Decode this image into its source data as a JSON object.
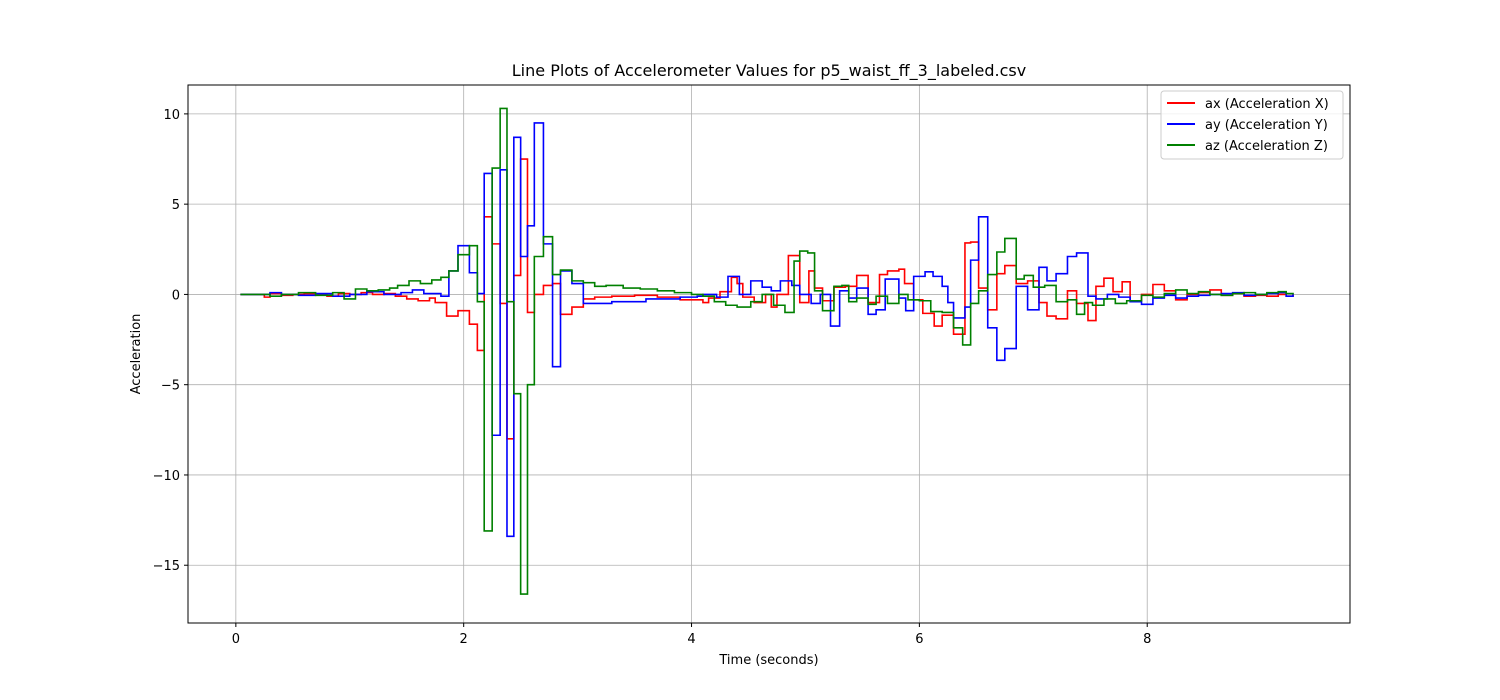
{
  "chart_data": {
    "type": "line",
    "title": "Line Plots of Accelerometer Values for p5_waist_ff_3_labeled.csv",
    "xlabel": "Time (seconds)",
    "ylabel": "Acceleration",
    "xlim": [
      -0.42,
      9.78
    ],
    "ylim": [
      -18.2,
      11.6
    ],
    "xticks": [
      0,
      2,
      4,
      6,
      8
    ],
    "yticks": [
      10,
      5,
      0,
      -5,
      -10,
      -15
    ],
    "ytick_labels": [
      "10",
      "5",
      "0",
      "−5",
      "−10",
      "−15"
    ],
    "grid": true,
    "legend_position": "top-right",
    "series": [
      {
        "name": "ax (Acceleration X)",
        "color": "#ff0000",
        "x": [
          0.04,
          0.25,
          0.3,
          0.4,
          0.5,
          0.6,
          0.7,
          0.8,
          0.9,
          1.0,
          1.1,
          1.2,
          1.3,
          1.4,
          1.5,
          1.6,
          1.7,
          1.75,
          1.85,
          1.95,
          2.05,
          2.12,
          2.18,
          2.25,
          2.32,
          2.38,
          2.44,
          2.5,
          2.56,
          2.62,
          2.7,
          2.78,
          2.85,
          2.95,
          3.05,
          3.15,
          3.3,
          3.5,
          3.7,
          3.9,
          4.1,
          4.15,
          4.25,
          4.35,
          4.4,
          4.45,
          4.55,
          4.65,
          4.7,
          4.75,
          4.85,
          4.95,
          5.03,
          5.08,
          5.15,
          5.25,
          5.35,
          5.45,
          5.55,
          5.65,
          5.72,
          5.82,
          5.87,
          5.95,
          6.03,
          6.13,
          6.2,
          6.3,
          6.4,
          6.45,
          6.52,
          6.6,
          6.68,
          6.75,
          6.85,
          6.95,
          7.05,
          7.12,
          7.2,
          7.3,
          7.38,
          7.48,
          7.55,
          7.62,
          7.7,
          7.78,
          7.85,
          7.95,
          8.05,
          8.15,
          8.25,
          8.35,
          8.45,
          8.55,
          8.65,
          8.75,
          8.85,
          8.95,
          9.05,
          9.15,
          9.22,
          9.28
        ],
        "y": [
          0.0,
          -0.15,
          0.05,
          -0.05,
          0.0,
          0.05,
          0.0,
          -0.1,
          0.05,
          0.0,
          0.1,
          0.0,
          0.05,
          -0.1,
          -0.25,
          -0.35,
          -0.2,
          -0.45,
          -1.2,
          -0.9,
          -1.65,
          -3.1,
          4.3,
          2.8,
          -0.5,
          -8.0,
          1.05,
          7.5,
          -1.0,
          0.0,
          0.5,
          0.6,
          -1.1,
          -0.7,
          -0.25,
          -0.15,
          -0.1,
          -0.05,
          -0.15,
          -0.3,
          -0.45,
          -0.2,
          0.15,
          0.95,
          0.6,
          -0.15,
          -0.45,
          0.0,
          -0.7,
          0.0,
          2.15,
          -0.45,
          1.3,
          0.35,
          -0.35,
          0.4,
          0.45,
          1.05,
          -0.45,
          1.1,
          1.3,
          1.4,
          0.6,
          -0.3,
          -1.05,
          -1.75,
          -1.15,
          -2.2,
          2.85,
          2.9,
          0.35,
          -0.85,
          1.15,
          1.6,
          0.6,
          0.75,
          -0.45,
          -1.2,
          -1.35,
          0.2,
          -0.5,
          -1.45,
          0.45,
          0.9,
          0.15,
          0.7,
          -0.35,
          0.0,
          0.55,
          0.2,
          -0.3,
          0.0,
          0.1,
          0.25,
          -0.05,
          0.05,
          -0.1,
          -0.05,
          -0.1,
          0.0,
          -0.1,
          0.0
        ]
      },
      {
        "name": "ay (Acceleration Y)",
        "color": "#0000ff",
        "x": [
          0.04,
          0.3,
          0.4,
          0.55,
          0.7,
          0.85,
          1.0,
          1.15,
          1.3,
          1.45,
          1.55,
          1.65,
          1.8,
          1.87,
          1.95,
          2.05,
          2.12,
          2.18,
          2.25,
          2.32,
          2.38,
          2.44,
          2.5,
          2.56,
          2.62,
          2.7,
          2.78,
          2.85,
          2.95,
          3.05,
          3.3,
          3.6,
          3.9,
          4.05,
          4.1,
          4.22,
          4.32,
          4.42,
          4.52,
          4.62,
          4.7,
          4.78,
          4.88,
          4.95,
          5.05,
          5.13,
          5.22,
          5.3,
          5.38,
          5.45,
          5.55,
          5.62,
          5.7,
          5.82,
          5.88,
          5.95,
          6.05,
          6.12,
          6.2,
          6.25,
          6.3,
          6.4,
          6.45,
          6.52,
          6.6,
          6.68,
          6.75,
          6.85,
          6.95,
          7.05,
          7.12,
          7.2,
          7.3,
          7.38,
          7.48,
          7.55,
          7.65,
          7.75,
          7.85,
          7.95,
          8.05,
          8.15,
          8.25,
          8.35,
          8.45,
          8.55,
          8.65,
          8.75,
          8.85,
          8.95,
          9.05,
          9.15,
          9.22,
          9.28
        ],
        "y": [
          0.0,
          0.1,
          0.0,
          -0.05,
          0.05,
          -0.1,
          0.0,
          0.15,
          0.0,
          0.1,
          0.25,
          0.05,
          -0.1,
          1.3,
          2.7,
          1.2,
          0.05,
          6.7,
          -7.8,
          6.9,
          -13.4,
          8.7,
          2.1,
          3.8,
          9.5,
          2.8,
          -4.0,
          1.3,
          0.6,
          -0.5,
          -0.4,
          -0.25,
          -0.15,
          -0.1,
          0.0,
          -0.15,
          1.0,
          0.0,
          0.75,
          0.4,
          0.2,
          0.75,
          0.5,
          0.0,
          -0.5,
          0.0,
          -1.75,
          0.2,
          -0.2,
          0.35,
          -1.1,
          -0.85,
          0.85,
          -0.2,
          -0.9,
          1.0,
          1.25,
          1.0,
          0.45,
          -0.45,
          -1.3,
          -0.7,
          1.9,
          4.3,
          -1.85,
          -3.65,
          -3.0,
          0.45,
          -0.85,
          1.5,
          0.75,
          1.15,
          2.1,
          2.3,
          -0.1,
          -0.25,
          0.0,
          -0.15,
          -0.4,
          -0.55,
          -0.2,
          -0.05,
          -0.2,
          -0.1,
          -0.05,
          0.0,
          0.05,
          0.1,
          -0.05,
          0.0,
          0.05,
          0.1,
          -0.1,
          0.0
        ]
      },
      {
        "name": "az (Acceleration Z)",
        "color": "#008000",
        "x": [
          0.04,
          0.3,
          0.4,
          0.55,
          0.7,
          0.85,
          0.95,
          1.05,
          1.15,
          1.25,
          1.35,
          1.42,
          1.52,
          1.62,
          1.72,
          1.8,
          1.87,
          1.95,
          2.05,
          2.12,
          2.18,
          2.25,
          2.32,
          2.38,
          2.44,
          2.5,
          2.56,
          2.62,
          2.7,
          2.78,
          2.85,
          2.95,
          3.05,
          3.15,
          3.25,
          3.4,
          3.55,
          3.7,
          3.85,
          4.0,
          4.1,
          4.2,
          4.3,
          4.4,
          4.52,
          4.62,
          4.72,
          4.82,
          4.9,
          4.95,
          5.02,
          5.08,
          5.15,
          5.25,
          5.32,
          5.38,
          5.45,
          5.55,
          5.62,
          5.72,
          5.82,
          5.9,
          6.0,
          6.1,
          6.2,
          6.3,
          6.38,
          6.45,
          6.52,
          6.6,
          6.68,
          6.75,
          6.85,
          6.92,
          7.0,
          7.1,
          7.2,
          7.3,
          7.38,
          7.45,
          7.52,
          7.62,
          7.72,
          7.82,
          7.95,
          8.05,
          8.15,
          8.25,
          8.35,
          8.45,
          8.55,
          8.65,
          8.75,
          8.85,
          8.95,
          9.05,
          9.15,
          9.22,
          9.28
        ],
        "y": [
          0.0,
          -0.1,
          0.0,
          0.1,
          -0.05,
          0.1,
          -0.25,
          0.3,
          0.2,
          0.25,
          0.35,
          0.5,
          0.75,
          0.6,
          0.8,
          0.95,
          1.3,
          2.2,
          2.7,
          -0.4,
          -13.1,
          7.0,
          10.3,
          -0.4,
          -5.5,
          -16.6,
          -5.0,
          2.1,
          3.2,
          1.1,
          1.35,
          0.75,
          0.65,
          0.45,
          0.5,
          0.35,
          0.3,
          0.2,
          0.1,
          0.0,
          -0.1,
          -0.4,
          -0.6,
          -0.7,
          -0.4,
          0.0,
          -0.6,
          -1.0,
          1.85,
          2.4,
          2.3,
          0.2,
          -0.9,
          0.45,
          0.5,
          -0.4,
          -0.2,
          -0.55,
          -0.1,
          -0.5,
          0.0,
          -0.3,
          -0.35,
          -0.95,
          -1.0,
          -1.85,
          -2.8,
          -0.5,
          0.2,
          1.1,
          2.35,
          3.1,
          0.85,
          1.05,
          0.4,
          0.5,
          -0.4,
          -0.3,
          -1.1,
          -0.45,
          -0.6,
          -0.25,
          -0.5,
          -0.35,
          -0.05,
          -0.15,
          0.05,
          0.25,
          0.05,
          0.15,
          0.0,
          -0.05,
          0.05,
          0.1,
          0.0,
          0.1,
          0.15,
          0.05,
          0.0
        ]
      }
    ]
  }
}
